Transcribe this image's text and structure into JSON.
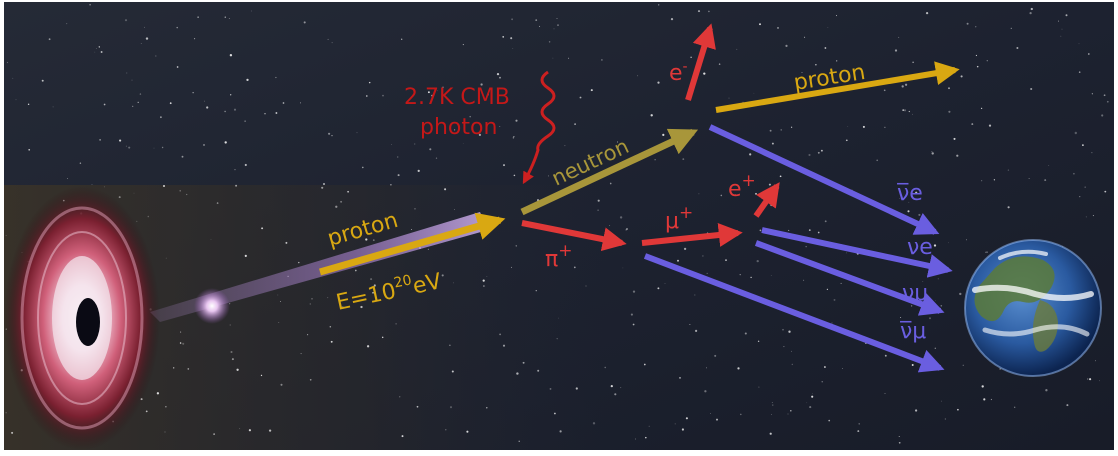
{
  "labels": {
    "proton_in": "proton",
    "energy_base": "E=10",
    "energy_exp": "20",
    "energy_unit": "eV",
    "cmb_line1": "2.7K CMB",
    "cmb_line2": "photon",
    "neutron": "neutron",
    "proton_out": "proton",
    "electron": "e",
    "electron_sup": "-",
    "pion": "π",
    "pion_sup": "+",
    "muon": "μ",
    "muon_sup": "+",
    "positron": "e",
    "positron_sup": "+",
    "nu_e_bar": "ν̅e",
    "nu_e": "νe",
    "nu_mu": "νμ",
    "nu_mu_bar": "ν̅μ"
  },
  "colors": {
    "proton": "#d9a812",
    "neutron": "#a8963a",
    "charged": "#e03838",
    "photon": "#cc2020",
    "neutrino": "#6a5ee0",
    "sky": "#1c2230"
  },
  "icons": {
    "source": "black-hole-accretion-disk-icon",
    "target": "earth-globe-icon"
  }
}
